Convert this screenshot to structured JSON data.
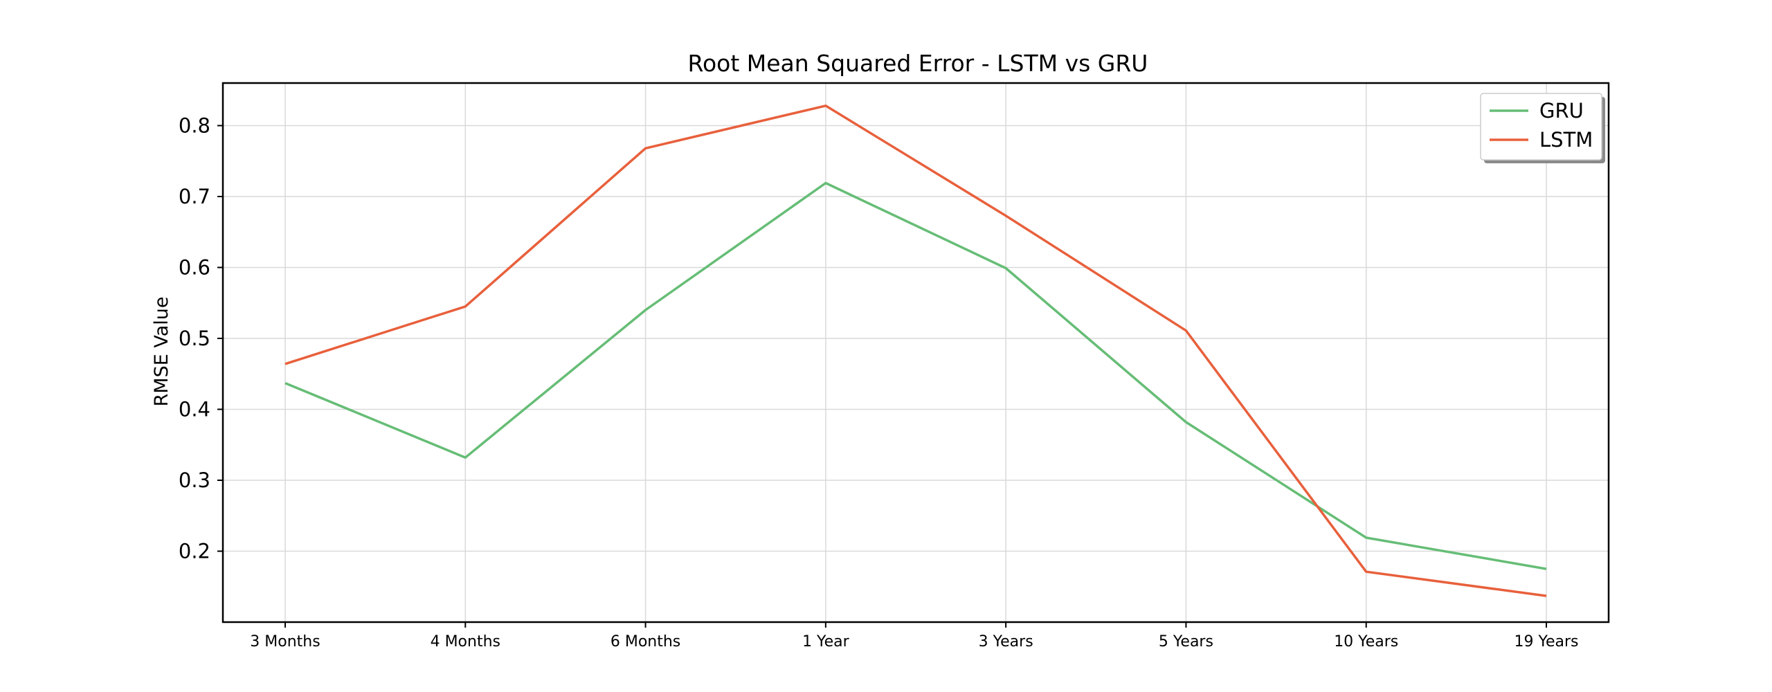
{
  "chart_data": {
    "type": "line",
    "title": "Root Mean Squared Error - LSTM vs GRU",
    "xlabel": "",
    "ylabel": "RMSE Value",
    "categories": [
      "3 Months",
      "4 Months",
      "6 Months",
      "1 Year",
      "3 Years",
      "5 Years",
      "10 Years",
      "19 Years"
    ],
    "ylim": [
      0.1,
      0.86
    ],
    "yticks": [
      "0.2",
      "0.3",
      "0.4",
      "0.5",
      "0.6",
      "0.7",
      "0.8"
    ],
    "grid": true,
    "legend_position": "top-right",
    "series": [
      {
        "name": "GRU",
        "color": "#66bd76",
        "values": [
          0.437,
          0.332,
          0.54,
          0.719,
          0.599,
          0.382,
          0.219,
          0.175
        ]
      },
      {
        "name": "LSTM",
        "color": "#e8603c",
        "values": [
          0.464,
          0.545,
          0.768,
          0.828,
          0.673,
          0.511,
          0.171,
          0.137
        ]
      }
    ]
  }
}
